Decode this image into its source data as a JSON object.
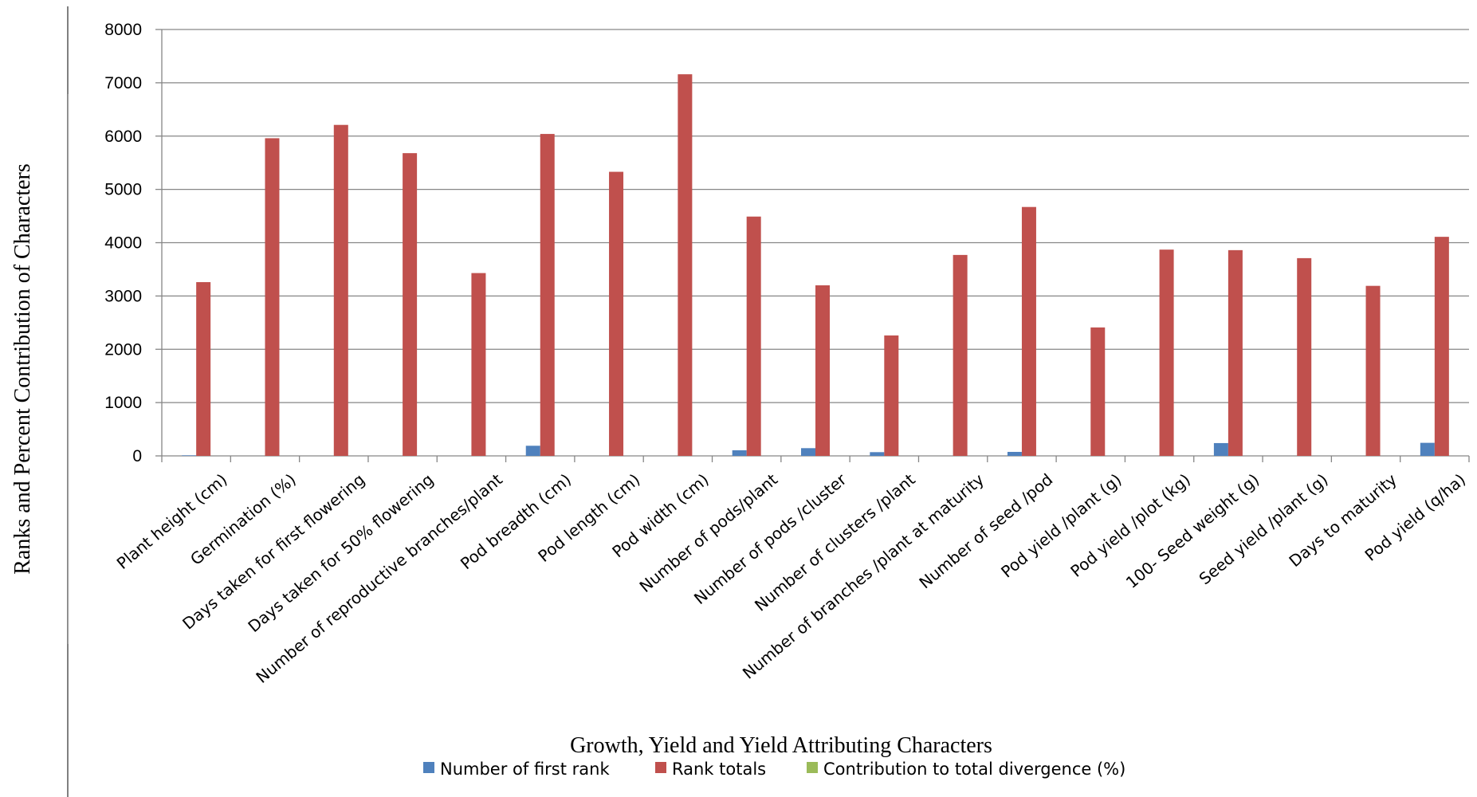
{
  "chart_data": {
    "type": "bar",
    "xlabel": "Growth, Yield and Yield Attributing Characters",
    "ylabel": "Ranks and Percent Contribution of Characters",
    "ylim": [
      0,
      8000
    ],
    "yticks": [
      0,
      1000,
      2000,
      3000,
      4000,
      5000,
      6000,
      7000,
      8000
    ],
    "grid": true,
    "legend_position": "bottom",
    "categories": [
      "Plant height (cm)",
      "Germination (%)",
      "Days taken for first flowering",
      "Days taken for 50% flowering",
      "Number of reproductive branches/plant",
      "Pod breadth (cm)",
      "Pod length (cm)",
      "Pod width (cm)",
      "Number of pods/plant",
      "Number of pods /cluster",
      "Number of clusters /plant",
      "Number of branches /plant at maturity",
      "Number of seed /pod",
      "Pod yield /plant (g)",
      "Pod yield /plot (kg)",
      "100- Seed weight (g)",
      "Seed yield /plant (g)",
      "Days to maturity",
      "Pod yield (q/ha)"
    ],
    "series": [
      {
        "name": "Number of first rank",
        "color": "#4f81bd",
        "values": [
          10,
          0,
          0,
          0,
          0,
          190,
          0,
          0,
          105,
          145,
          70,
          0,
          75,
          0,
          0,
          240,
          0,
          0,
          245
        ]
      },
      {
        "name": "Rank totals",
        "color": "#c0504d",
        "values": [
          3260,
          5960,
          6210,
          5680,
          3430,
          6040,
          5330,
          7160,
          4490,
          3200,
          2260,
          3770,
          4670,
          2410,
          3870,
          3860,
          3710,
          3190,
          4110
        ]
      },
      {
        "name": "Contribution to total divergence (%)",
        "color": "#9bbb59",
        "values": [
          0,
          0,
          0,
          0,
          0,
          0,
          0,
          0,
          0,
          0,
          0,
          0,
          0,
          0,
          0,
          0,
          0,
          0,
          0
        ]
      }
    ]
  }
}
